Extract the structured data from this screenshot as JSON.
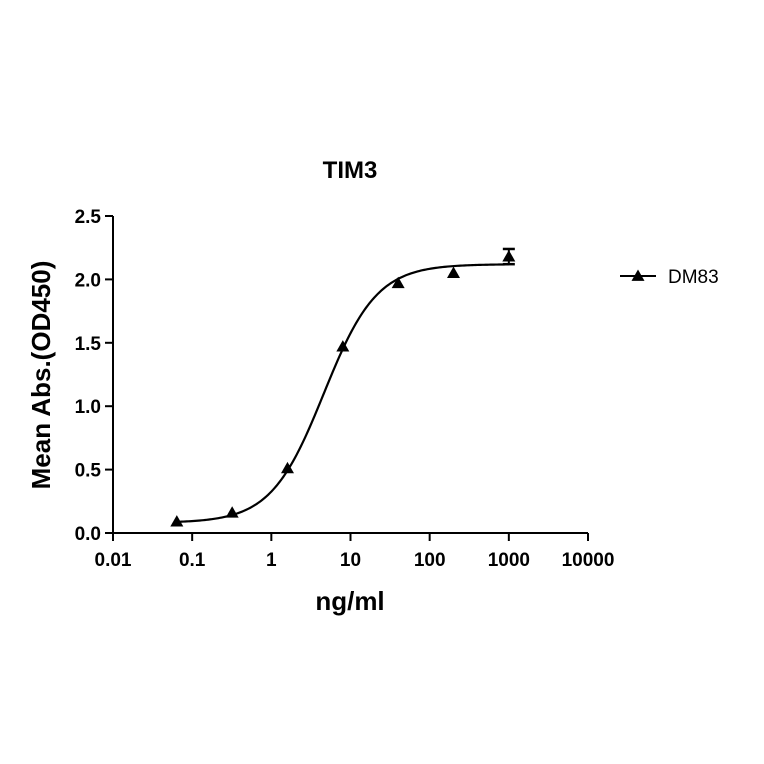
{
  "chart_data": {
    "type": "scatter",
    "title": "TIM3",
    "xlabel": "ng/ml",
    "ylabel": "Mean Abs.(OD450)",
    "xscale": "log",
    "xlim": [
      0.01,
      10000
    ],
    "ylim": [
      0,
      2.5
    ],
    "xticks": [
      0.01,
      0.1,
      1,
      10,
      100,
      1000,
      10000
    ],
    "xtick_labels": [
      "0.01",
      "0.1",
      "1",
      "10",
      "100",
      "1000",
      "10000"
    ],
    "yticks": [
      0,
      0.5,
      1.0,
      1.5,
      2.0,
      2.5
    ],
    "ytick_labels": [
      "0.0",
      "0.5",
      "1.0",
      "1.5",
      "2.0",
      "2.5"
    ],
    "grid": false,
    "legend_position": "right",
    "series": [
      {
        "name": "DM83",
        "marker": "triangle",
        "color": "#000000",
        "x": [
          0.064,
          0.32,
          1.6,
          8,
          40,
          200,
          1000
        ],
        "y": [
          0.09,
          0.16,
          0.51,
          1.47,
          1.97,
          2.05,
          2.18
        ],
        "error": [
          0,
          0,
          0,
          0,
          0,
          0,
          0.06
        ],
        "fit": {
          "model": "4PL",
          "bottom": 0.08,
          "top": 2.12,
          "ec50": 4.6,
          "hill": 1.3,
          "x_range": [
            0.064,
            1000
          ]
        }
      }
    ]
  }
}
